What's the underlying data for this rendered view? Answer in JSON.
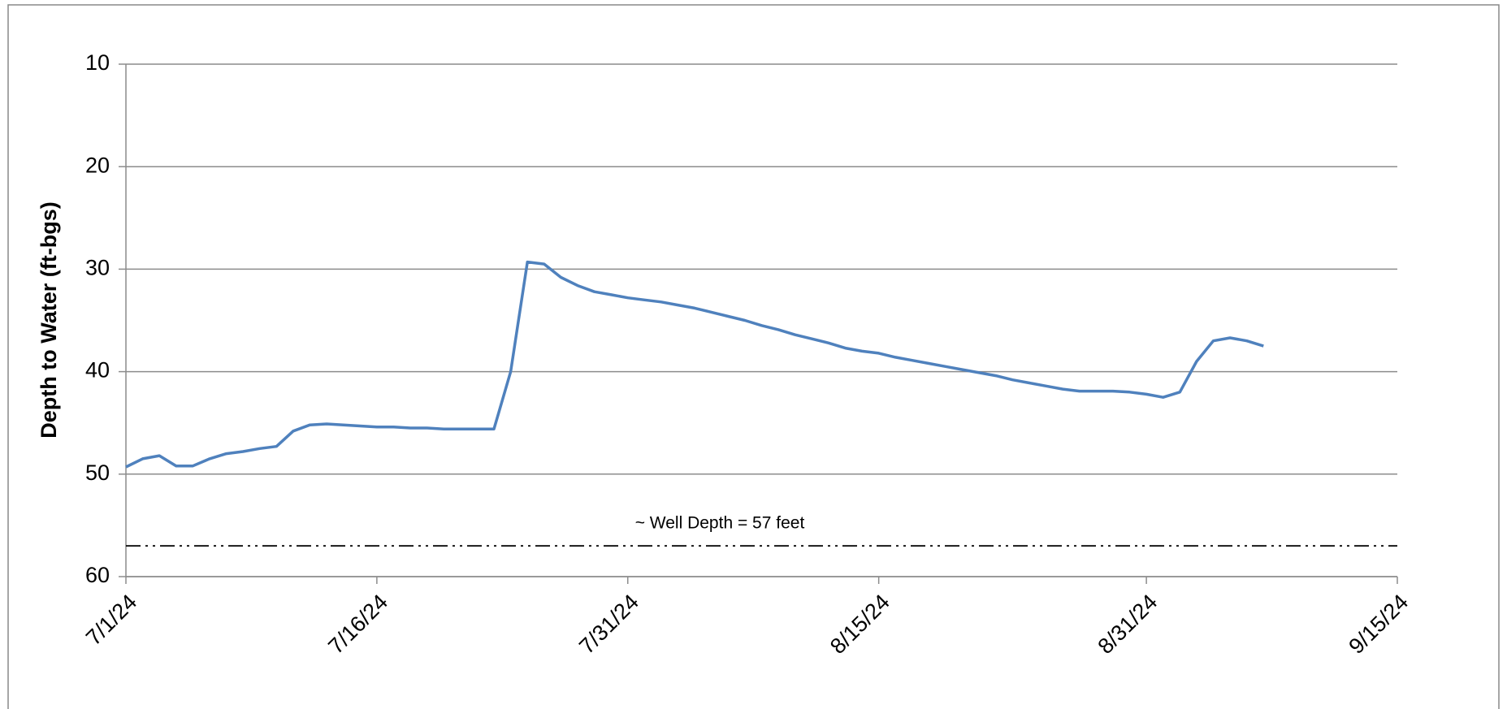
{
  "chart_data": {
    "type": "line",
    "y_label": "Depth to Water (ft-bgs)",
    "x": [
      "2024-07-01",
      "2024-07-02",
      "2024-07-03",
      "2024-07-04",
      "2024-07-05",
      "2024-07-06",
      "2024-07-07",
      "2024-07-08",
      "2024-07-09",
      "2024-07-10",
      "2024-07-11",
      "2024-07-12",
      "2024-07-13",
      "2024-07-14",
      "2024-07-15",
      "2024-07-16",
      "2024-07-17",
      "2024-07-18",
      "2024-07-19",
      "2024-07-20",
      "2024-07-21",
      "2024-07-22",
      "2024-07-23",
      "2024-07-24",
      "2024-07-25",
      "2024-07-26",
      "2024-07-27",
      "2024-07-28",
      "2024-07-29",
      "2024-07-30",
      "2024-07-31",
      "2024-08-01",
      "2024-08-02",
      "2024-08-03",
      "2024-08-04",
      "2024-08-05",
      "2024-08-06",
      "2024-08-07",
      "2024-08-08",
      "2024-08-09",
      "2024-08-10",
      "2024-08-11",
      "2024-08-12",
      "2024-08-13",
      "2024-08-14",
      "2024-08-15",
      "2024-08-16",
      "2024-08-17",
      "2024-08-18",
      "2024-08-19",
      "2024-08-20",
      "2024-08-21",
      "2024-08-22",
      "2024-08-23",
      "2024-08-24",
      "2024-08-25",
      "2024-08-26",
      "2024-08-27",
      "2024-08-28",
      "2024-08-29",
      "2024-08-30",
      "2024-08-31",
      "2024-09-01",
      "2024-09-02",
      "2024-09-03",
      "2024-09-04",
      "2024-09-05",
      "2024-09-06",
      "2024-09-07"
    ],
    "series": [
      {
        "name": "Depth to Water",
        "color": "#4f81bd",
        "values": [
          49.3,
          48.5,
          48.2,
          49.2,
          49.2,
          48.5,
          48.0,
          47.8,
          47.5,
          47.3,
          45.8,
          45.2,
          45.1,
          45.2,
          45.3,
          45.4,
          45.4,
          45.5,
          45.5,
          45.6,
          45.6,
          45.6,
          45.6,
          40.0,
          29.3,
          29.5,
          30.8,
          31.6,
          32.2,
          32.5,
          32.8,
          33.0,
          33.2,
          33.5,
          33.8,
          34.2,
          34.6,
          35.0,
          35.5,
          35.9,
          36.4,
          36.8,
          37.2,
          37.7,
          38.0,
          38.2,
          38.6,
          38.9,
          39.2,
          39.5,
          39.8,
          40.1,
          40.4,
          40.8,
          41.1,
          41.4,
          41.7,
          41.9,
          41.9,
          41.9,
          42.0,
          42.2,
          42.5,
          42.0,
          39.0,
          37.0,
          36.7,
          37.0,
          37.5
        ]
      }
    ],
    "ylim": [
      10,
      60
    ],
    "y_inverted": true,
    "yticks": [
      10,
      20,
      30,
      40,
      50,
      60
    ],
    "xlim": [
      "2024-07-01",
      "2024-09-15"
    ],
    "xticks": [
      {
        "value": "2024-07-01",
        "label": "7/1/24"
      },
      {
        "value": "2024-07-16",
        "label": "7/16/24"
      },
      {
        "value": "2024-07-31",
        "label": "7/31/24"
      },
      {
        "value": "2024-08-15",
        "label": "8/15/24"
      },
      {
        "value": "2024-08-31",
        "label": "8/31/24"
      },
      {
        "value": "2024-09-15",
        "label": "9/15/24"
      }
    ],
    "grid": true,
    "reference_line": {
      "value": 57,
      "label": "~ Well Depth = 57 feet"
    }
  }
}
